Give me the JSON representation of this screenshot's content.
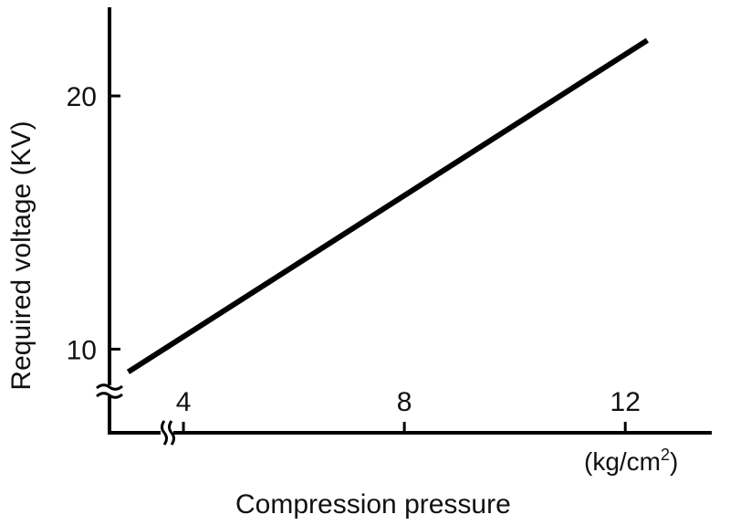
{
  "chart_data": {
    "type": "line",
    "title": "",
    "xlabel": "Compression pressure",
    "xunit_base": "(kg/cm",
    "xunit_sup": "2",
    "xunit_close": ")",
    "ylabel": "Required voltage (KV)",
    "xlim": [
      2,
      13.5
    ],
    "ylim": [
      8.5,
      23.5
    ],
    "x_axis_break": true,
    "y_axis_break": true,
    "grid": false,
    "xticks": [
      4,
      8,
      12
    ],
    "xtick_labels": [
      "4",
      "8",
      "12"
    ],
    "yticks": [
      10,
      20
    ],
    "ytick_labels": [
      "10",
      "20"
    ],
    "series": [
      {
        "x": [
          3,
          12.4
        ],
        "y": [
          9.1,
          22.2
        ],
        "color": "#000000"
      }
    ]
  }
}
